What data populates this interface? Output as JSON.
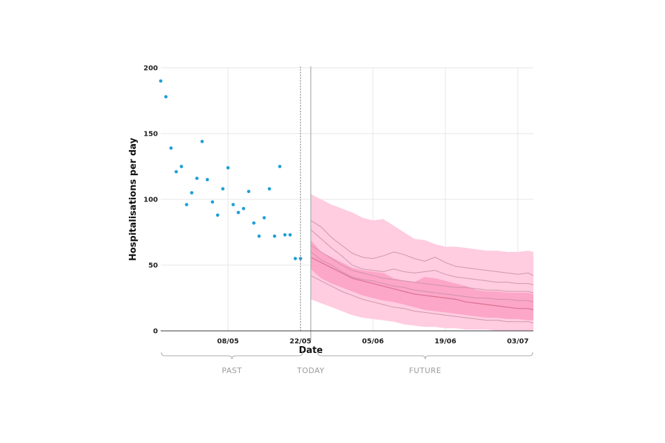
{
  "chart_data": {
    "type": "scatter",
    "title": "",
    "xlabel": "Date",
    "ylabel": "Hospitalisations per day",
    "ylim": [
      0,
      200
    ],
    "yticks": [
      0,
      50,
      100,
      150,
      200
    ],
    "xlim": [
      "2021-04-25",
      "2021-07-06"
    ],
    "xticks": [
      {
        "date": "2021-05-08",
        "label": "08/05"
      },
      {
        "date": "2021-05-22",
        "label": "22/05"
      },
      {
        "date": "2021-06-05",
        "label": "05/06"
      },
      {
        "date": "2021-06-19",
        "label": "19/06"
      },
      {
        "date": "2021-07-03",
        "label": "03/07"
      }
    ],
    "grid": true,
    "last_observation_date": "2021-05-22",
    "today_date": "2021-05-24",
    "observed": {
      "color": "#1e9fd6",
      "dates": [
        "2021-04-25",
        "2021-04-26",
        "2021-04-27",
        "2021-04-28",
        "2021-04-29",
        "2021-04-30",
        "2021-05-01",
        "2021-05-02",
        "2021-05-03",
        "2021-05-04",
        "2021-05-05",
        "2021-05-06",
        "2021-05-07",
        "2021-05-08",
        "2021-05-09",
        "2021-05-10",
        "2021-05-11",
        "2021-05-12",
        "2021-05-13",
        "2021-05-14",
        "2021-05-15",
        "2021-05-16",
        "2021-05-17",
        "2021-05-18",
        "2021-05-19",
        "2021-05-20",
        "2021-05-21",
        "2021-05-22"
      ],
      "values": [
        190,
        178,
        139,
        121,
        125,
        96,
        105,
        116,
        144,
        115,
        98,
        88,
        108,
        124,
        96,
        90,
        93,
        106,
        82,
        72,
        86,
        108,
        72,
        125,
        73,
        73,
        55,
        55
      ]
    },
    "forecast": {
      "color_outer": "#ffcce0",
      "color_inner": "#fca6c8",
      "line_color": "#c9909e",
      "dates": [
        "2021-05-24",
        "2021-05-26",
        "2021-05-28",
        "2021-05-30",
        "2021-06-01",
        "2021-06-03",
        "2021-06-05",
        "2021-06-07",
        "2021-06-09",
        "2021-06-11",
        "2021-06-13",
        "2021-06-15",
        "2021-06-17",
        "2021-06-19",
        "2021-06-21",
        "2021-06-23",
        "2021-06-25",
        "2021-06-27",
        "2021-06-29",
        "2021-07-01",
        "2021-07-03",
        "2021-07-05",
        "2021-07-06"
      ],
      "outer_upper": [
        104,
        100,
        96,
        93,
        90,
        86,
        84,
        85,
        80,
        75,
        70,
        69,
        66,
        64,
        64,
        63,
        62,
        61,
        61,
        60,
        60,
        61,
        60
      ],
      "outer_lower": [
        24,
        21,
        18,
        15,
        12,
        10,
        9,
        8,
        7,
        5,
        4,
        3,
        3,
        2,
        2,
        1,
        1,
        1,
        0,
        0,
        0,
        0,
        0
      ],
      "inner_upper": [
        69,
        60,
        56,
        52,
        48,
        46,
        45,
        44,
        40,
        38,
        37,
        41,
        40,
        38,
        36,
        34,
        31,
        30,
        30,
        29,
        29,
        29,
        28
      ],
      "inner_lower": [
        47,
        40,
        36,
        33,
        30,
        27,
        25,
        23,
        22,
        20,
        18,
        16,
        15,
        14,
        13,
        12,
        11,
        10,
        10,
        9,
        9,
        8,
        8
      ],
      "median": [
        56,
        52,
        48,
        44,
        40,
        38,
        36,
        34,
        32,
        30,
        28,
        27,
        26,
        25,
        24,
        22,
        21,
        20,
        19,
        18,
        17,
        17,
        16
      ],
      "sample_paths": [
        [
          84,
          79,
          71,
          65,
          59,
          56,
          55,
          57,
          60,
          58,
          55,
          53,
          56,
          52,
          49,
          48,
          47,
          46,
          45,
          44,
          43,
          44,
          42
        ],
        [
          77,
          70,
          63,
          57,
          50,
          47,
          46,
          45,
          47,
          45,
          44,
          45,
          46,
          43,
          41,
          40,
          39,
          38,
          37,
          37,
          36,
          36,
          35
        ],
        [
          65,
          60,
          55,
          50,
          46,
          44,
          42,
          40,
          39,
          38,
          37,
          36,
          35,
          34,
          33,
          33,
          32,
          31,
          31,
          30,
          30,
          30,
          29
        ],
        [
          60,
          54,
          50,
          45,
          41,
          39,
          38,
          36,
          34,
          33,
          31,
          30,
          29,
          28,
          27,
          26,
          25,
          25,
          24,
          24,
          23,
          23,
          22
        ],
        [
          42,
          38,
          34,
          30,
          27,
          24,
          22,
          20,
          18,
          17,
          15,
          14,
          13,
          12,
          11,
          10,
          9,
          8,
          8,
          7,
          7,
          7,
          6
        ]
      ]
    },
    "periods": [
      {
        "label": "PAST",
        "from": "2021-04-25",
        "to": "2021-05-22"
      },
      {
        "label": "TODAY",
        "from": "2021-05-24",
        "to": "2021-05-24"
      },
      {
        "label": "FUTURE",
        "from": "2021-05-25",
        "to": "2021-07-06"
      }
    ]
  }
}
